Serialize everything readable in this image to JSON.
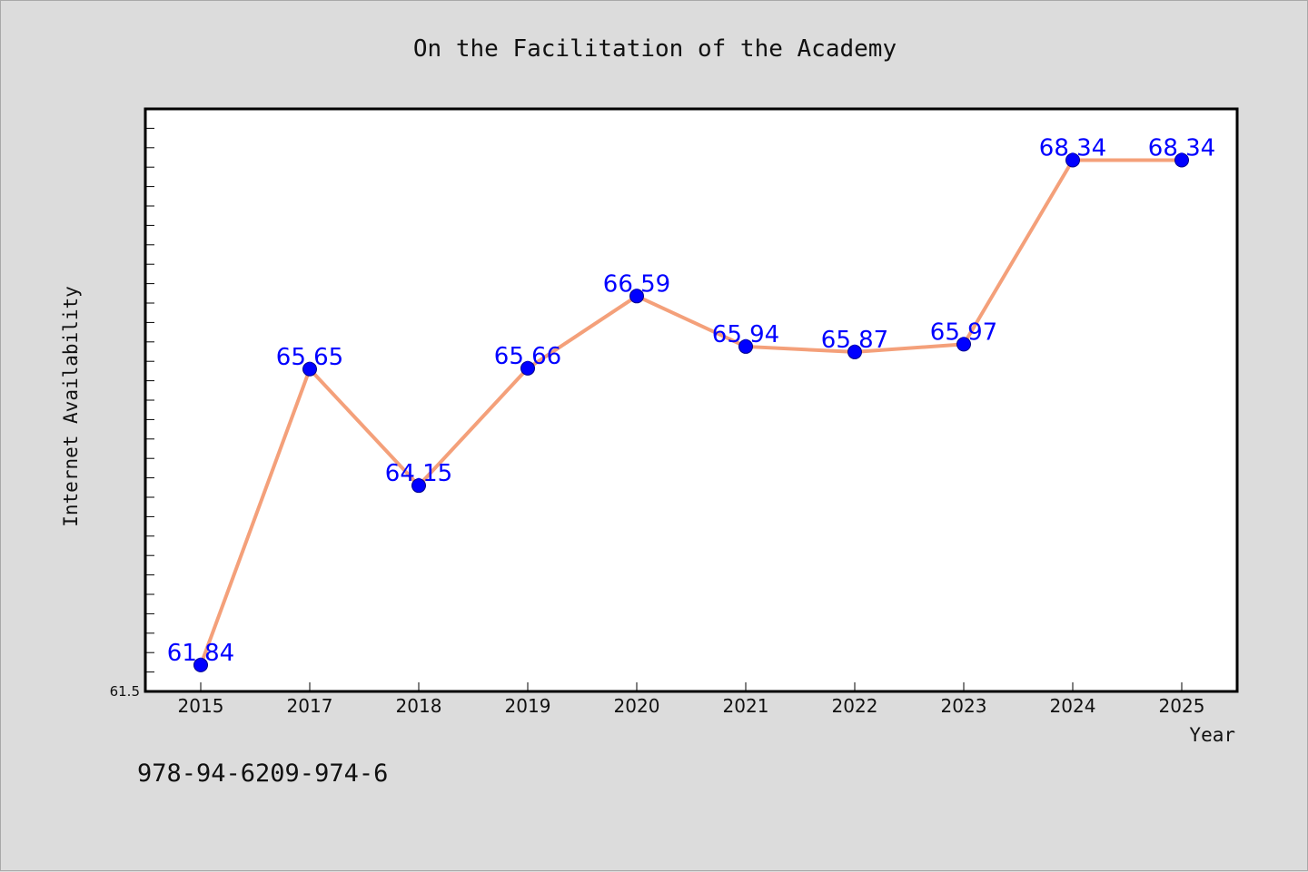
{
  "chart_data": {
    "type": "line",
    "title": "On the Facilitation of the Academy",
    "xlabel": "Year",
    "ylabel": "Internet Availability",
    "categories": [
      "2015",
      "2017",
      "2018",
      "2019",
      "2020",
      "2021",
      "2022",
      "2023",
      "2024",
      "2025"
    ],
    "series": [
      {
        "values": [
          61.84,
          65.65,
          64.15,
          65.66,
          66.59,
          65.94,
          65.87,
          65.97,
          68.34,
          68.34
        ],
        "data_labels": [
          "61.84",
          "65.65",
          "64.15",
          "65.66",
          "66.59",
          "65.94",
          "65.87",
          "65.97",
          "68.34",
          "68.34"
        ]
      }
    ],
    "ylim": [
      61.5,
      69.0
    ],
    "ytick_min_label": "61.5",
    "grid": false,
    "legend": "none",
    "colors": {
      "line": "#f4a07a",
      "marker": "#0000ff",
      "marker_edge": "#00008b",
      "data_label": "#0000ff",
      "plot_background": "#ffffff",
      "page_background": "#dcdcdc"
    }
  },
  "footer": {
    "isbn": "978-94-6209-974-6"
  }
}
